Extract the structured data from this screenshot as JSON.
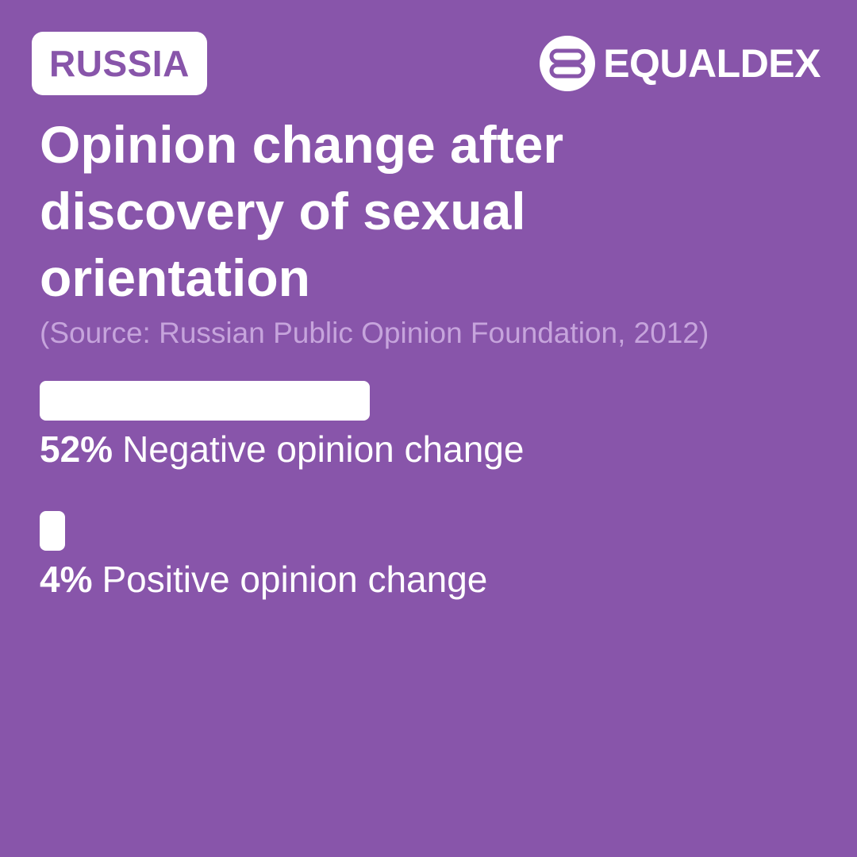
{
  "header": {
    "country": "RUSSIA",
    "brand": "EQUALDEX",
    "brand_logo_icon": "equaldex-logo-icon"
  },
  "chart_data": {
    "type": "bar",
    "orientation": "horizontal",
    "title": "Opinion change after discovery of sexual orientation",
    "source": "(Source: Russian Public Opinion Foundation, 2012)",
    "categories": [
      "Negative opinion change",
      "Positive opinion change"
    ],
    "values": [
      52,
      4
    ],
    "value_labels": [
      "52%",
      "4%"
    ],
    "unit": "%",
    "xlim": [
      0,
      100
    ],
    "grid": false,
    "legend": "none"
  },
  "colors": {
    "background": "#8855aa",
    "bar": "#ffffff",
    "text": "#ffffff",
    "source_text": "#c6a4dc"
  }
}
